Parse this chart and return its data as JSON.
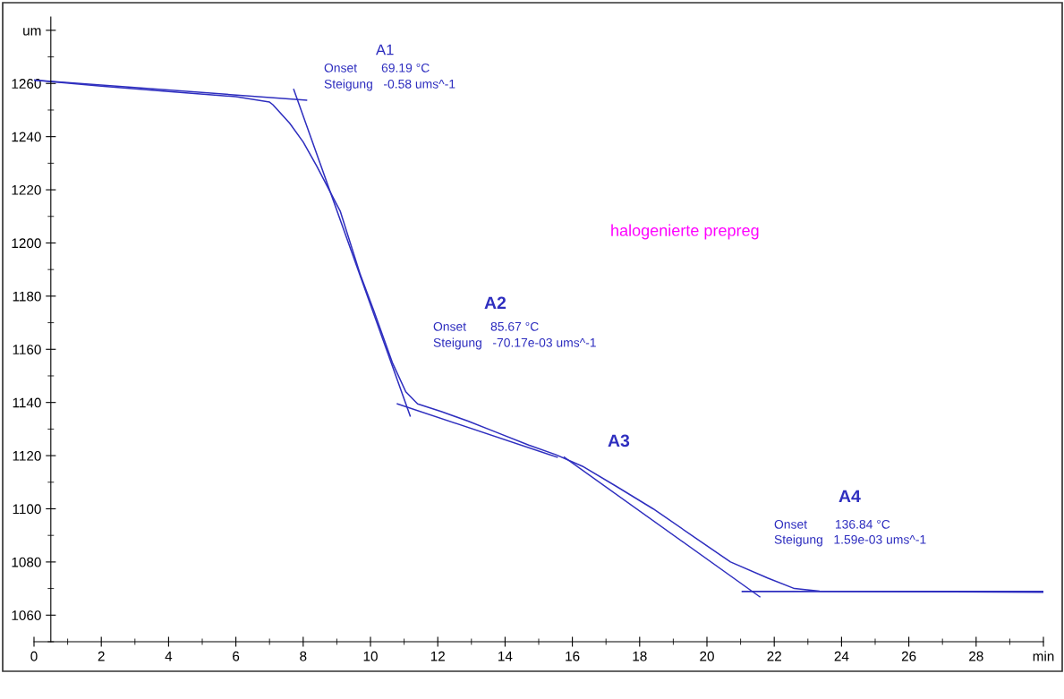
{
  "chart_data": {
    "type": "line",
    "series": [
      {
        "color": "#2e2ebf",
        "x": [
          0,
          2,
          4,
          6,
          7,
          7.1,
          7.6,
          8.0,
          8.4,
          9.1,
          9.7,
          10.1,
          10.65,
          11.05,
          11.4,
          12.1,
          12.9,
          13.7,
          14.7,
          15.5,
          16.3,
          17.3,
          18.4,
          19.7,
          20.7,
          21.8,
          22.6,
          23.35,
          30
        ],
        "values": [
          1261.3,
          1259,
          1257,
          1255,
          1253,
          1252,
          1245,
          1238,
          1229,
          1212,
          1188,
          1174.5,
          1155,
          1144,
          1139.5,
          1136.6,
          1133,
          1129,
          1124,
          1120.4,
          1116,
          1108.5,
          1100,
          1088.7,
          1080,
          1074,
          1070,
          1069,
          1068.6
        ]
      },
      {
        "color": "#2e2ebf",
        "x": [
          0,
          8.1
        ],
        "values": [
          1261.3,
          1253.7
        ]
      },
      {
        "color": "#2e2ebf",
        "x": [
          7.72,
          11.18
        ],
        "values": [
          1257.7,
          1134.9
        ]
      },
      {
        "color": "#2e2ebf",
        "x": [
          10.8,
          15.55
        ],
        "values": [
          1139.5,
          1119.4
        ]
      },
      {
        "color": "#2e2ebf",
        "x": [
          15.76,
          21.57
        ],
        "values": [
          1119.4,
          1066.9
        ]
      },
      {
        "color": "#2e2ebf",
        "x": [
          21.05,
          30
        ],
        "values": [
          1068.9,
          1068.9
        ]
      }
    ],
    "xlim": [
      0,
      30
    ],
    "xticks": [
      0,
      2,
      4,
      6,
      8,
      10,
      12,
      14,
      16,
      18,
      20,
      22,
      24,
      26,
      28,
      {
        "value": 30,
        "label": "min"
      }
    ],
    "ylim": [
      1050,
      1285
    ],
    "yticks": [
      1060,
      1080,
      1100,
      1120,
      1140,
      1160,
      1180,
      1200,
      1220,
      1240,
      1260,
      {
        "value": 1280,
        "label": "um"
      }
    ],
    "grid": false,
    "marker": "none",
    "line_style": "solid",
    "annotations": [
      "A1",
      "Onset       69.19 °C",
      "Steigung   -0.58 ums^-1",
      "A2",
      "Onset       85.67 °C",
      "Steigung   -70.17e-03 ums^-1",
      "A3",
      "A4",
      "Onset        136.84 °C",
      "Steigung   1.59e-03 ums^-1",
      "halogenierte prepreg"
    ]
  }
}
